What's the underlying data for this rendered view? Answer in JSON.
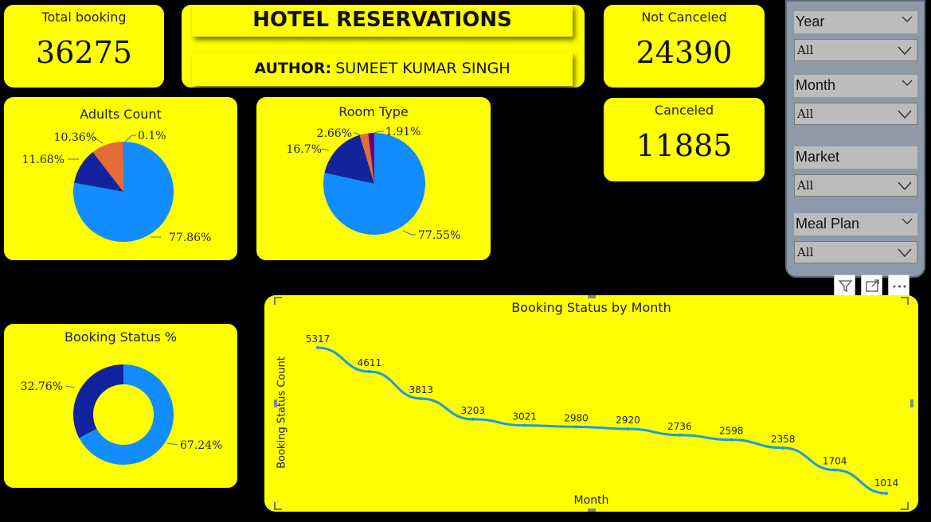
{
  "kpis": {
    "total_booking": {
      "label": "Total booking",
      "value": "36275"
    },
    "not_canceled": {
      "label": "Not Canceled",
      "value": "24390"
    },
    "canceled": {
      "label": "Canceled",
      "value": "11885"
    }
  },
  "header": {
    "title": "HOTEL RESERVATIONS",
    "author_prefix": "AUTHOR:",
    "author_name": "SUMEET KUMAR SINGH"
  },
  "colors": {
    "card": "#ffff00",
    "background": "#000000",
    "blue": "#118dff",
    "dark_blue": "#12239e",
    "orange": "#e66c37",
    "purple": "#6b007b",
    "magenta": "#e044a7"
  },
  "slicers": [
    {
      "label": "Year",
      "value": "All"
    },
    {
      "label": "Month",
      "value": "All"
    },
    {
      "label": "Market",
      "value": "All"
    },
    {
      "label": "Meal Plan",
      "value": "All"
    }
  ],
  "visual_icons": [
    "filter-icon",
    "focus-mode-icon",
    "more-options-icon"
  ],
  "chart_data": [
    {
      "type": "pie",
      "title": "Adults Count",
      "labels": [
        "77.86%",
        "11.68%",
        "10.36%",
        "0.1%"
      ],
      "values": [
        77.86,
        11.68,
        10.36,
        0.1
      ],
      "colors": [
        "#118dff",
        "#12239e",
        "#e66c37",
        "#6b007b"
      ]
    },
    {
      "type": "pie",
      "title": "Room Type",
      "labels": [
        "77.55%",
        "16.7%",
        "2.66%",
        "1.91%"
      ],
      "values": [
        77.55,
        16.7,
        2.66,
        1.91
      ],
      "colors": [
        "#118dff",
        "#12239e",
        "#e66c37",
        "#6b007b"
      ]
    },
    {
      "type": "pie",
      "title": "Booking Status %",
      "labels": [
        "67.24%",
        "32.76%"
      ],
      "values": [
        67.24,
        32.76
      ],
      "colors": [
        "#118dff",
        "#12239e"
      ]
    },
    {
      "type": "line",
      "title": "Booking Status by Month",
      "xlabel": "Month",
      "ylabel": "Booking Status Count",
      "series": [
        {
          "values": [
            5317,
            4611,
            3813,
            3203,
            3021,
            2980,
            2920,
            2736,
            2598,
            2358,
            1704,
            1014
          ]
        }
      ],
      "color": "#1a9ce0"
    }
  ]
}
